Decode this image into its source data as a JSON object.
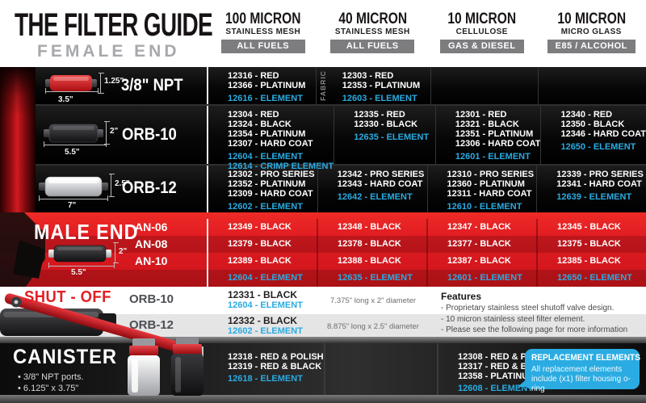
{
  "title": "THE FILTER GUIDE",
  "female_heading": "FEMALE END",
  "columns": [
    {
      "micron": "100 MICRON",
      "media": "STAINLESS MESH",
      "fuel": "ALL FUELS"
    },
    {
      "micron": "40 MICRON",
      "media": "STAINLESS MESH",
      "fuel": "ALL FUELS"
    },
    {
      "micron": "10 MICRON",
      "media": "CELLULOSE",
      "fuel": "GAS & DIESEL"
    },
    {
      "micron": "10 MICRON",
      "media": "MICRO GLASS",
      "fuel": "E85 / ALCOHOL"
    }
  ],
  "female_rows": [
    {
      "label": "3/8\" NPT",
      "dims": {
        "height": "1.25\"",
        "length": "3.5\""
      },
      "cells": [
        {
          "parts": [
            "12316 - RED",
            "12366 - PLATINUM"
          ],
          "elements": [
            "12616 - ELEMENT"
          ]
        },
        {
          "side_note": "FABRIC",
          "parts": [
            "12303 - RED",
            "12353 - PLATINUM"
          ],
          "elements": [
            "12603 - ELEMENT"
          ]
        },
        {
          "parts": [],
          "elements": []
        },
        {
          "parts": [],
          "elements": []
        }
      ]
    },
    {
      "label": "ORB-10",
      "dims": {
        "height": "2\"",
        "length": "5.5\""
      },
      "cells": [
        {
          "parts": [
            "12304 - RED",
            "12324 - BLACK",
            "12354 - PLATINUM",
            "12307 - HARD COAT"
          ],
          "elements": [
            "12604 - ELEMENT",
            "12614 - CRIMP ELEMENT"
          ]
        },
        {
          "parts": [
            "12335 - RED",
            "12330 - BLACK"
          ],
          "elements": [
            "12635 - ELEMENT"
          ]
        },
        {
          "parts": [
            "12301 - RED",
            "12321 - BLACK",
            "12351 - PLATINUM",
            "12306 - HARD COAT"
          ],
          "elements": [
            "12601 - ELEMENT"
          ]
        },
        {
          "parts": [
            "12340 - RED",
            "12350 - BLACK",
            "12346 - HARD COAT"
          ],
          "elements": [
            "12650 - ELEMENT"
          ]
        }
      ]
    },
    {
      "label": "ORB-12",
      "dims": {
        "height": "2.5\"",
        "length": "7\""
      },
      "cells": [
        {
          "parts": [
            "12302 - PRO SERIES",
            "12352 - PLATINUM",
            "12309 - HARD COAT"
          ],
          "elements": [
            "12602 - ELEMENT"
          ]
        },
        {
          "parts": [
            "12342 - PRO SERIES",
            "12343 - HARD COAT"
          ],
          "elements": [
            "12642 - ELEMENT"
          ]
        },
        {
          "parts": [
            "12310 - PRO SERIES",
            "12360 - PLATINUM",
            "12311 - HARD COAT"
          ],
          "elements": [
            "12610 - ELEMENT"
          ]
        },
        {
          "parts": [
            "12339 - PRO SERIES",
            "12341 - HARD COAT"
          ],
          "elements": [
            "12639 - ELEMENT"
          ]
        }
      ]
    }
  ],
  "male": {
    "heading": "MALE END",
    "dims": {
      "height": "2\"",
      "length": "5.5\""
    },
    "rows": [
      {
        "label": "AN-06",
        "parts": [
          "12349 - BLACK",
          "12348 - BLACK",
          "12347 - BLACK",
          "12345 - BLACK"
        ]
      },
      {
        "label": "AN-08",
        "parts": [
          "12379 - BLACK",
          "12378 - BLACK",
          "12377 - BLACK",
          "12375 - BLACK"
        ]
      },
      {
        "label": "AN-10",
        "parts": [
          "12389 - BLACK",
          "12388 - BLACK",
          "12387 - BLACK",
          "12385 - BLACK"
        ]
      }
    ],
    "elements": [
      "12604 - ELEMENT",
      "12635 - ELEMENT",
      "12601 - ELEMENT",
      "12650 - ELEMENT"
    ]
  },
  "shutoff": {
    "heading": "SHUT - OFF",
    "rows": [
      {
        "label": "ORB-10",
        "part": "12331 - BLACK",
        "element": "12604 - ELEMENT",
        "size": "7.375\" long x 2\" diameter"
      },
      {
        "label": "ORB-12",
        "part": "12332 - BLACK",
        "element": "12602 - ELEMENT",
        "size": "8.875\" long x 2.5\" diameter"
      }
    ],
    "features_title": "Features",
    "features": [
      "- Proprietary stainless steel shutoff valve design.",
      "- 10 micron stainless steel filter element.",
      "- Please see the following page for more information"
    ]
  },
  "canister": {
    "heading": "CANISTER",
    "bullets": [
      "• 3/8\" NPT ports.",
      "• 6.125\" x 3.75\""
    ],
    "cells": [
      {
        "parts": [
          "12318 - RED & POLISH",
          "12319 - RED & BLACK"
        ],
        "elements": [
          "12618 - ELEMENT"
        ]
      },
      {
        "parts": [],
        "elements": []
      },
      {
        "parts": [
          "12308 - RED & POLISH",
          "12317 - RED & BLACK",
          "12358 - PLATINUM"
        ],
        "elements": [
          "12608 - ELEMENT"
        ]
      }
    ],
    "callout": {
      "title": "REPLACEMENT ELEMENTS",
      "body": "All replacement elements include (x1) filter housing o-ring"
    }
  },
  "colors": {
    "element_blue": "#29abe2",
    "brand_red": "#e21f26",
    "badge_gray": "#7d7d80"
  }
}
